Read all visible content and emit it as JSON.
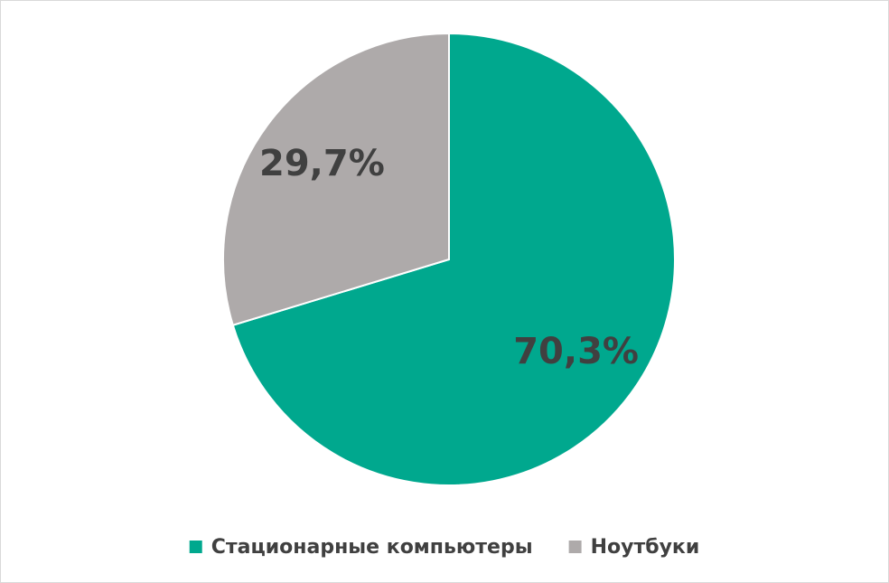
{
  "chart_data": {
    "type": "pie",
    "categories": [
      "Стационарные компьютеры",
      "Ноутбуки"
    ],
    "values": [
      70.3,
      29.7
    ],
    "value_labels": [
      "70,3%",
      "29,7%"
    ],
    "colors": [
      "#00a88e",
      "#aeaaaa"
    ]
  }
}
